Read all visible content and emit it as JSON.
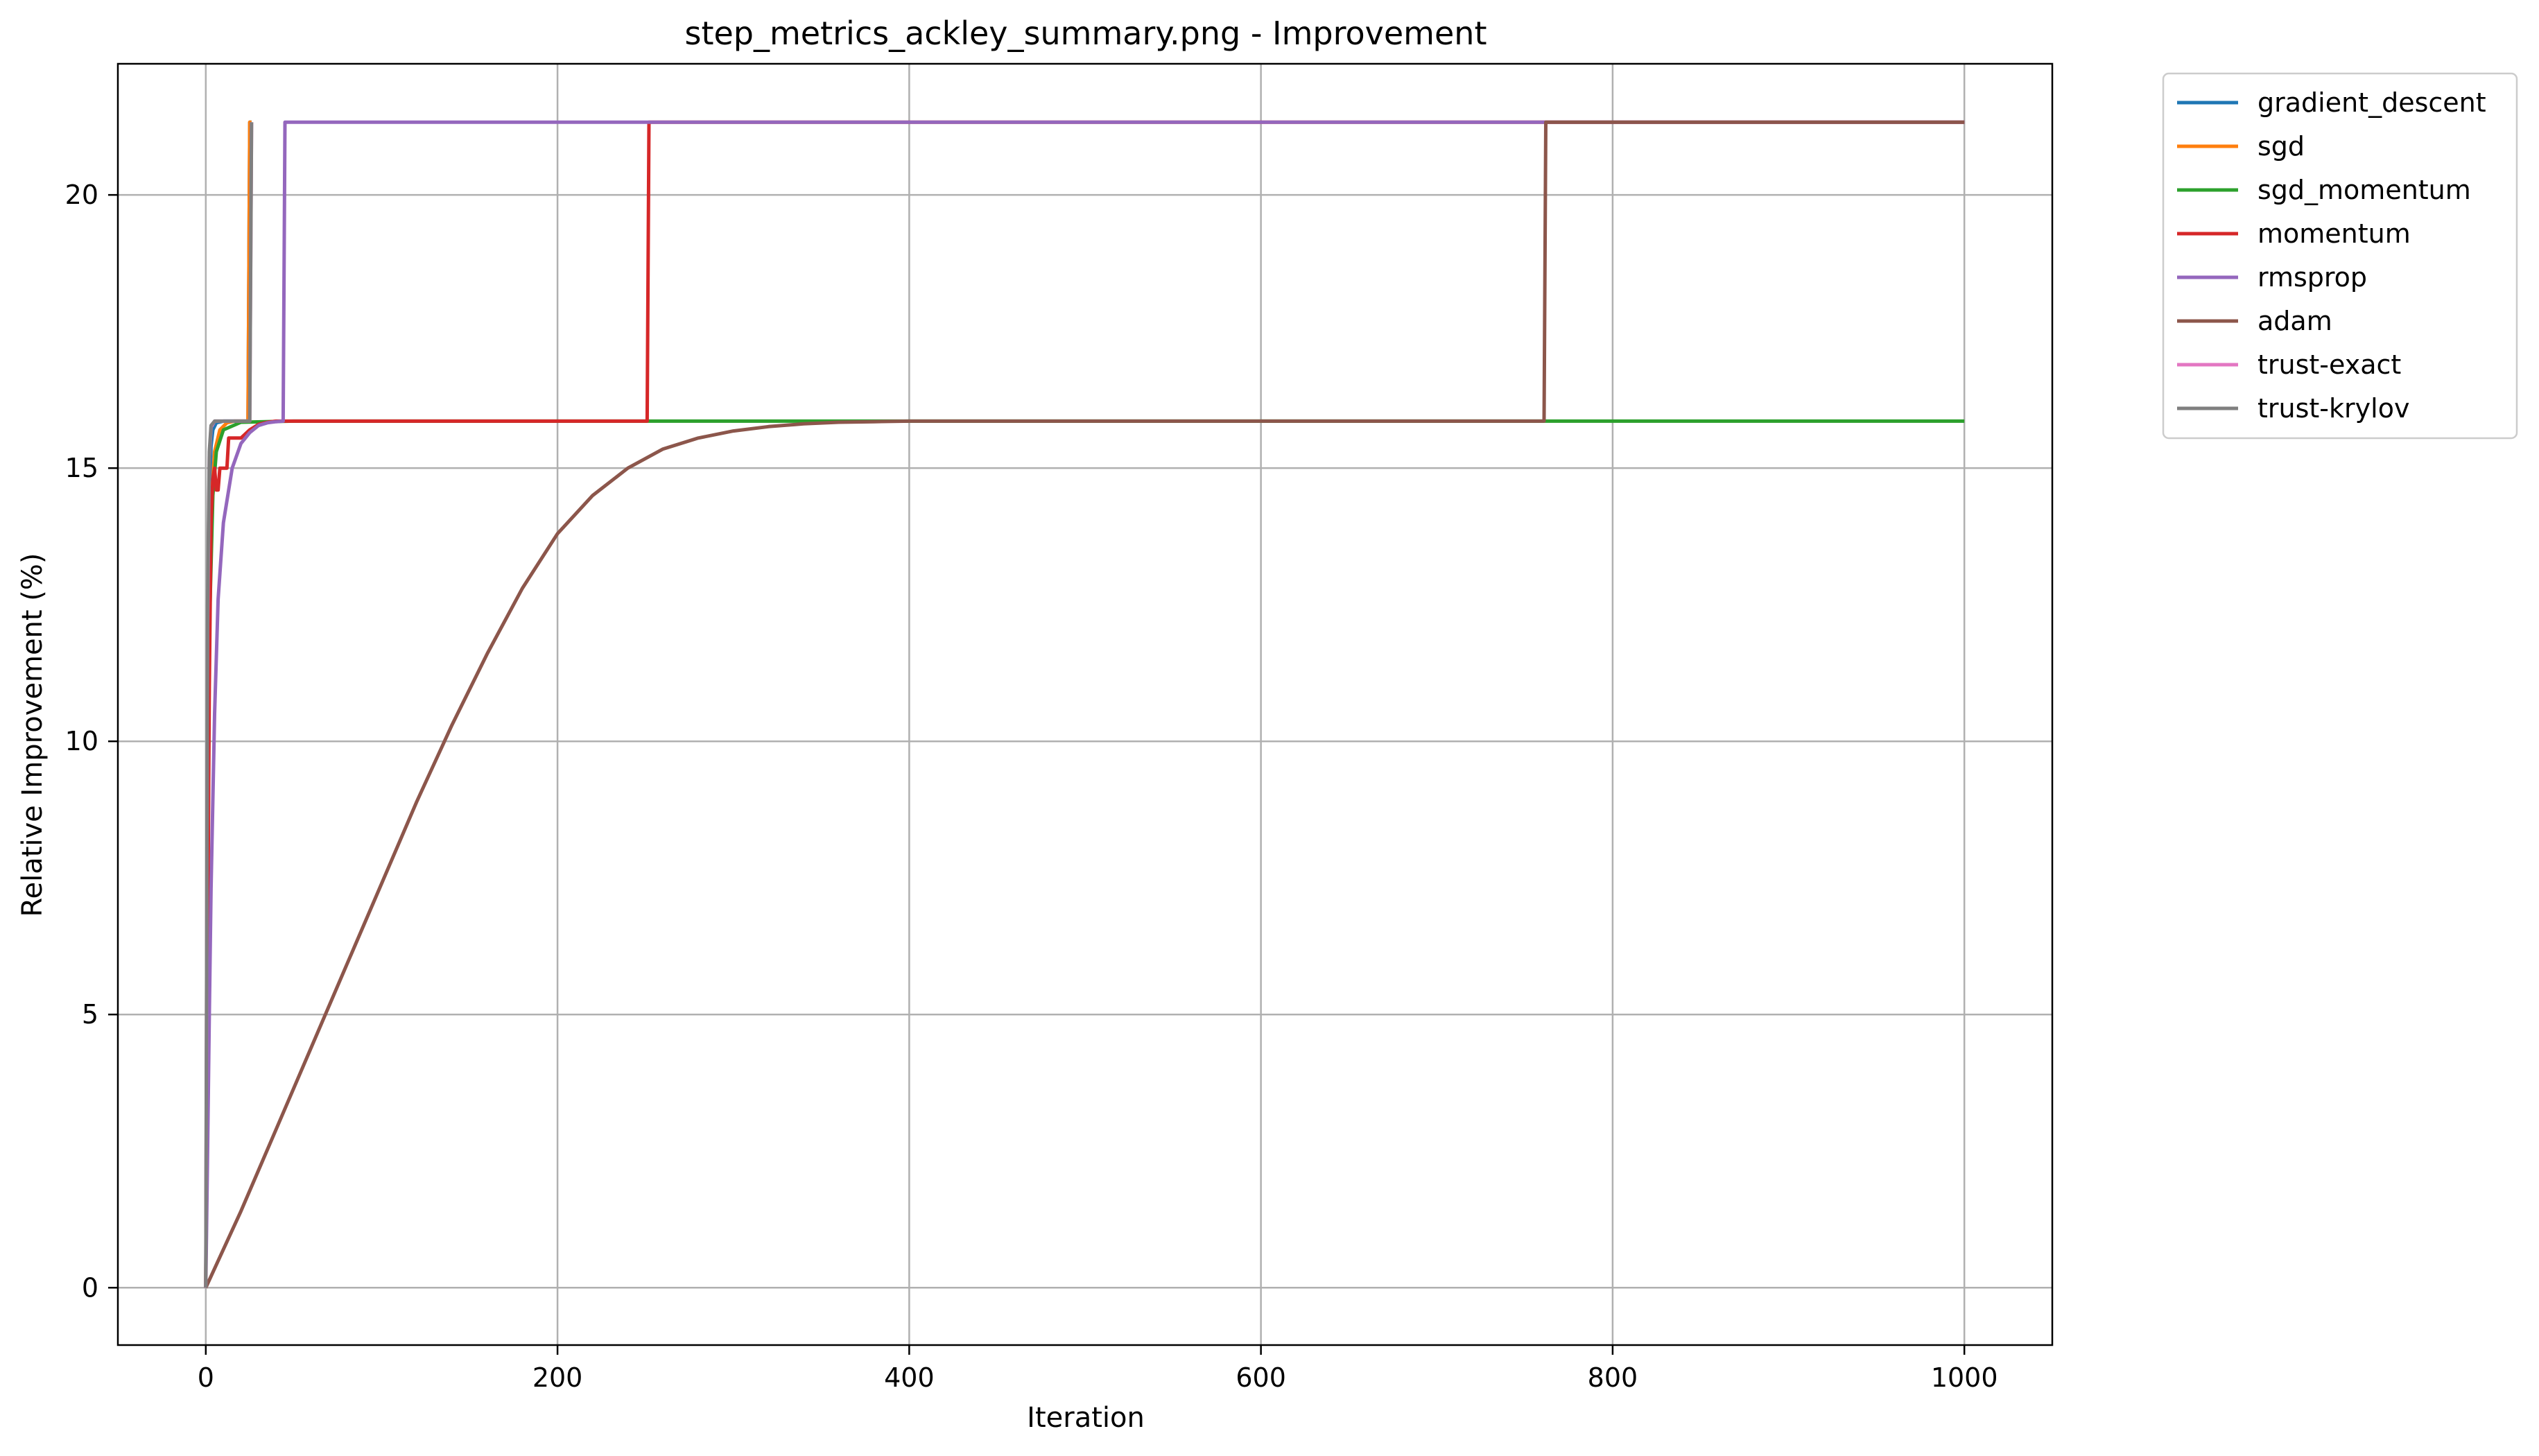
{
  "chart_data": {
    "type": "line",
    "title": "step_metrics_ackley_summary.png - Improvement",
    "xlabel": "Iteration",
    "ylabel": "Relative Improvement (%)",
    "xlim": [
      -50,
      1050
    ],
    "ylim": [
      -1.05,
      22.4
    ],
    "xticks": [
      0,
      200,
      400,
      600,
      800,
      1000
    ],
    "yticks": [
      0,
      5,
      10,
      15,
      20
    ],
    "grid": true,
    "legend_position": "outside-top-right",
    "series": [
      {
        "name": "gradient_descent",
        "color": "#1f77b4",
        "x": [
          0,
          1,
          2,
          3,
          4,
          6,
          10,
          15,
          20,
          24,
          25,
          26
        ],
        "y": [
          0,
          10.0,
          14.5,
          15.4,
          15.7,
          15.83,
          15.86,
          15.86,
          15.86,
          15.86,
          21.33,
          21.33
        ]
      },
      {
        "name": "sgd",
        "color": "#ff7f0e",
        "x": [
          0,
          1,
          2,
          3,
          5,
          8,
          12,
          16,
          20,
          24,
          25,
          26
        ],
        "y": [
          0,
          8.0,
          12.5,
          14.3,
          15.3,
          15.7,
          15.83,
          15.86,
          15.86,
          15.86,
          21.33,
          21.33
        ]
      },
      {
        "name": "sgd_momentum",
        "color": "#2ca02c",
        "x": [
          0,
          1,
          2,
          4,
          6,
          10,
          20,
          50,
          200,
          500,
          800,
          1000
        ],
        "y": [
          0,
          7.0,
          12.0,
          14.5,
          15.3,
          15.7,
          15.84,
          15.86,
          15.86,
          15.86,
          15.86,
          15.86
        ]
      },
      {
        "name": "momentum",
        "color": "#d62728",
        "x": [
          0,
          1,
          2,
          3,
          4,
          5,
          6,
          7,
          8,
          12,
          13,
          19,
          20,
          25,
          30,
          35,
          40,
          100,
          200,
          251,
          252,
          400,
          600,
          800,
          1000
        ],
        "y": [
          0,
          6.0,
          11.0,
          14.0,
          14.8,
          15.0,
          14.6,
          14.6,
          15.0,
          15.0,
          15.55,
          15.55,
          15.55,
          15.7,
          15.8,
          15.84,
          15.86,
          15.86,
          15.86,
          15.86,
          21.33,
          21.33,
          21.33,
          21.33,
          21.33
        ]
      },
      {
        "name": "rmsprop",
        "color": "#9467bd",
        "x": [
          0,
          1,
          2,
          3,
          5,
          7,
          10,
          15,
          20,
          25,
          30,
          35,
          40,
          44,
          45,
          100,
          200,
          400,
          600,
          800,
          1000
        ],
        "y": [
          0,
          2.5,
          5.0,
          7.3,
          10.5,
          12.6,
          14.0,
          15.0,
          15.45,
          15.65,
          15.78,
          15.83,
          15.85,
          15.86,
          21.33,
          21.33,
          21.33,
          21.33,
          21.33,
          21.33,
          21.33
        ]
      },
      {
        "name": "adam",
        "color": "#8c564b",
        "x": [
          0,
          20,
          40,
          60,
          80,
          100,
          120,
          140,
          160,
          180,
          200,
          220,
          240,
          260,
          280,
          300,
          320,
          340,
          360,
          380,
          400,
          450,
          500,
          600,
          700,
          761,
          762,
          800,
          900,
          1000
        ],
        "y": [
          0,
          1.4,
          2.9,
          4.4,
          5.9,
          7.4,
          8.9,
          10.3,
          11.6,
          12.8,
          13.8,
          14.5,
          15.0,
          15.35,
          15.55,
          15.68,
          15.76,
          15.81,
          15.84,
          15.85,
          15.86,
          15.86,
          15.86,
          15.86,
          15.86,
          15.86,
          21.33,
          21.33,
          21.33,
          21.33
        ]
      },
      {
        "name": "trust-exact",
        "color": "#e377c2",
        "x": [
          0,
          1,
          2,
          3,
          5,
          10,
          25,
          26
        ],
        "y": [
          0,
          12.0,
          15.2,
          15.75,
          15.86,
          15.86,
          15.86,
          21.33
        ]
      },
      {
        "name": "trust-krylov",
        "color": "#7f7f7f",
        "x": [
          0,
          1,
          2,
          3,
          5,
          10,
          25,
          26
        ],
        "y": [
          0,
          12.5,
          15.3,
          15.78,
          15.86,
          15.86,
          15.86,
          21.33
        ]
      }
    ]
  }
}
